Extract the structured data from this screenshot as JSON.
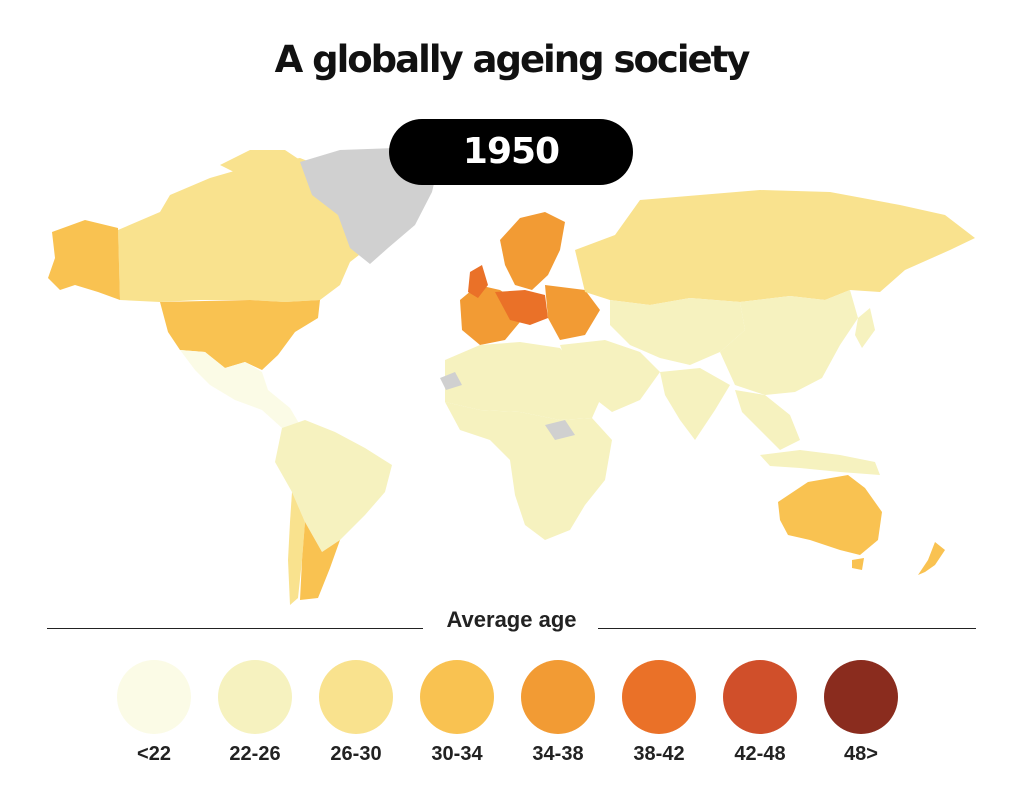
{
  "title": "A globally ageing society",
  "year": "1950",
  "legend": {
    "title": "Average age",
    "bins": [
      {
        "label": "<22",
        "color": "#fbfbe6"
      },
      {
        "label": "22-26",
        "color": "#f6f2bf"
      },
      {
        "label": "26-30",
        "color": "#f9e28e"
      },
      {
        "label": "30-34",
        "color": "#f9c251"
      },
      {
        "label": "34-38",
        "color": "#f29b34"
      },
      {
        "label": "38-42",
        "color": "#ea7128"
      },
      {
        "label": "42-48",
        "color": "#d04f2a"
      },
      {
        "label": "48>",
        "color": "#8a2c1e"
      }
    ],
    "no_data_color": "#d0d0d0"
  },
  "map": {
    "projection": "equirectangular world map",
    "regions": [
      {
        "name": "Alaska",
        "bin": "30-34"
      },
      {
        "name": "Canada",
        "bin": "26-30"
      },
      {
        "name": "United States",
        "bin": "30-34"
      },
      {
        "name": "Greenland",
        "bin": "no data"
      },
      {
        "name": "Mexico",
        "bin": "<22"
      },
      {
        "name": "Central America",
        "bin": "<22"
      },
      {
        "name": "South America north",
        "bin": "22-26"
      },
      {
        "name": "Argentina",
        "bin": "30-34"
      },
      {
        "name": "Chile",
        "bin": "26-30"
      },
      {
        "name": "Scandinavia",
        "bin": "34-38"
      },
      {
        "name": "Western Europe",
        "bin": "34-38"
      },
      {
        "name": "Central Europe",
        "bin": "38-42"
      },
      {
        "name": "Russia",
        "bin": "26-30"
      },
      {
        "name": "Central Asia",
        "bin": "22-26"
      },
      {
        "name": "China",
        "bin": "22-26"
      },
      {
        "name": "India",
        "bin": "22-26"
      },
      {
        "name": "North Africa",
        "bin": "22-26"
      },
      {
        "name": "Sub-Saharan Africa",
        "bin": "22-26"
      },
      {
        "name": "Western Sahara",
        "bin": "no data"
      },
      {
        "name": "South Sudan",
        "bin": "no data"
      },
      {
        "name": "Southeast Asia",
        "bin": "22-26"
      },
      {
        "name": "Australia",
        "bin": "30-34"
      },
      {
        "name": "New Zealand",
        "bin": "30-34"
      }
    ]
  }
}
